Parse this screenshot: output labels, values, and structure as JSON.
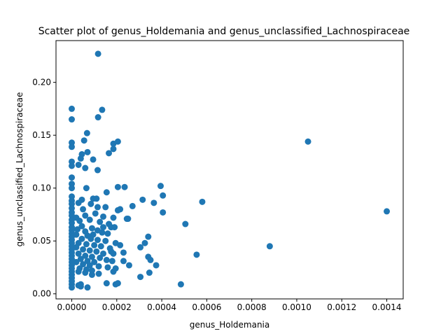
{
  "chart_data": {
    "type": "scatter",
    "title": "Scatter plot of genus_Holdemania and genus_unclassified_Lachnospiraceae",
    "xlabel": "genus_Holdemania",
    "ylabel": "genus_unclassified_Lachnospiraceae",
    "xlim": [
      -7e-05,
      0.001473
    ],
    "ylim": [
      -0.0048,
      0.2395
    ],
    "xticks": [
      0.0,
      0.0002,
      0.0004,
      0.0006,
      0.0008,
      0.001,
      0.0012,
      0.0014
    ],
    "xtick_labels": [
      "0.0000",
      "0.0002",
      "0.0004",
      "0.0006",
      "0.0008",
      "0.0010",
      "0.0012",
      "0.0014"
    ],
    "yticks": [
      0.0,
      0.05,
      0.1,
      0.15,
      0.2
    ],
    "ytick_labels": [
      "0.00",
      "0.05",
      "0.10",
      "0.15",
      "0.20"
    ],
    "marker_color": "#1f77b4",
    "series": [
      {
        "name": "genus_Holdemania vs genus_unclassified_Lachnospiraceae",
        "points": [
          [
            0.0,
            0.175
          ],
          [
            0.0,
            0.165
          ],
          [
            0.0,
            0.143
          ],
          [
            0.0,
            0.139
          ],
          [
            0.0,
            0.125
          ],
          [
            0.0,
            0.121
          ],
          [
            0.0,
            0.11
          ],
          [
            0.0,
            0.104
          ],
          [
            0.0,
            0.1
          ],
          [
            0.0,
            0.092
          ],
          [
            0.0,
            0.088
          ],
          [
            0.0,
            0.085
          ],
          [
            0.0,
            0.081
          ],
          [
            0.0,
            0.077
          ],
          [
            0.0,
            0.074
          ],
          [
            0.0,
            0.07
          ],
          [
            0.0,
            0.067
          ],
          [
            0.0,
            0.063
          ],
          [
            0.0,
            0.06
          ],
          [
            0.0,
            0.057
          ],
          [
            0.0,
            0.054
          ],
          [
            0.0,
            0.051
          ],
          [
            0.0,
            0.048
          ],
          [
            0.0,
            0.045
          ],
          [
            0.0,
            0.042
          ],
          [
            0.0,
            0.039
          ],
          [
            0.0,
            0.036
          ],
          [
            0.0,
            0.033
          ],
          [
            0.0,
            0.03
          ],
          [
            0.0,
            0.027
          ],
          [
            0.0,
            0.024
          ],
          [
            0.0,
            0.021
          ],
          [
            0.0,
            0.018
          ],
          [
            0.0,
            0.015
          ],
          [
            0.0,
            0.012
          ],
          [
            0.0,
            0.009
          ],
          [
            0.0,
            0.006
          ],
          [
            0.000117,
            0.227
          ],
          [
            0.000135,
            0.174
          ],
          [
            0.000117,
            0.167
          ],
          [
            6.8e-05,
            0.152
          ],
          [
            5.5e-05,
            0.145
          ],
          [
            0.000205,
            0.144
          ],
          [
            0.000185,
            0.142
          ],
          [
            0.000185,
            0.137
          ],
          [
            7e-05,
            0.134
          ],
          [
            4.5e-05,
            0.132
          ],
          [
            0.000165,
            0.133
          ],
          [
            9.5e-05,
            0.127
          ],
          [
            4e-05,
            0.128
          ],
          [
            3e-05,
            0.122
          ],
          [
            6e-05,
            0.119
          ],
          [
            0.000115,
            0.117
          ],
          [
            6.5e-05,
            0.1
          ],
          [
            0.000155,
            0.096
          ],
          [
            0.000205,
            0.101
          ],
          [
            0.000235,
            0.101
          ],
          [
            0.000395,
            0.102
          ],
          [
            0.000405,
            0.093
          ],
          [
            9.5e-05,
            0.09
          ],
          [
            0.00011,
            0.09
          ],
          [
            4.5e-05,
            0.089
          ],
          [
            0.000315,
            0.089
          ],
          [
            0.000365,
            0.086
          ],
          [
            0.00058,
            0.087
          ],
          [
            0.00027,
            0.083
          ],
          [
            0.000215,
            0.08
          ],
          [
            0.000205,
            0.079
          ],
          [
            0.00015,
            0.082
          ],
          [
            8.5e-05,
            0.085
          ],
          [
            3e-05,
            0.086
          ],
          [
            5e-05,
            0.08
          ],
          [
            0.000115,
            0.082
          ],
          [
            0.000405,
            0.077
          ],
          [
            0.000105,
            0.076
          ],
          [
            0.00014,
            0.073
          ],
          [
            0.000185,
            0.072
          ],
          [
            0.000245,
            0.071
          ],
          [
            0.00025,
            0.071
          ],
          [
            6e-05,
            0.074
          ],
          [
            2e-05,
            0.072
          ],
          [
            3.5e-05,
            0.069
          ],
          [
            8e-05,
            0.07
          ],
          [
            0.000125,
            0.068
          ],
          [
            0.000165,
            0.066
          ],
          [
            0.000505,
            0.066
          ],
          [
            0.00014,
            0.063
          ],
          [
            0.000175,
            0.063
          ],
          [
            0.00019,
            0.063
          ],
          [
            4.5e-05,
            0.064
          ],
          [
            9e-05,
            0.062
          ],
          [
            0.000115,
            0.06
          ],
          [
            2.5e-05,
            0.061
          ],
          [
            6e-05,
            0.059
          ],
          [
            0.000135,
            0.058
          ],
          [
            0.00016,
            0.057
          ],
          [
            9.5e-05,
            0.056
          ],
          [
            7e-05,
            0.055
          ],
          [
            2e-05,
            0.056
          ],
          [
            0.00034,
            0.054
          ],
          [
            4.5e-05,
            0.052
          ],
          [
            8.5e-05,
            0.052
          ],
          [
            0.000115,
            0.051
          ],
          [
            0.00015,
            0.05
          ],
          [
            0.000195,
            0.048
          ],
          [
            0.000215,
            0.046
          ],
          [
            0.000325,
            0.048
          ],
          [
            0.000305,
            0.044
          ],
          [
            3e-05,
            0.048
          ],
          [
            6.5e-05,
            0.047
          ],
          [
            0.0001,
            0.046
          ],
          [
            0.00013,
            0.045
          ],
          [
            0.00017,
            0.043
          ],
          [
            0.00023,
            0.039
          ],
          [
            0.000175,
            0.04
          ],
          [
            2e-05,
            0.044
          ],
          [
            5e-05,
            0.042
          ],
          [
            8e-05,
            0.041
          ],
          [
            0.00011,
            0.04
          ],
          [
            0.00014,
            0.038
          ],
          [
            0.000185,
            0.038
          ],
          [
            0.00034,
            0.035
          ],
          [
            0.00035,
            0.032
          ],
          [
            0.000555,
            0.037
          ],
          [
            0.00088,
            0.045
          ],
          [
            3e-05,
            0.038
          ],
          [
            6e-05,
            0.036
          ],
          [
            9e-05,
            0.035
          ],
          [
            0.000125,
            0.034
          ],
          [
            0.000155,
            0.032
          ],
          [
            0.00018,
            0.031
          ],
          [
            0.00023,
            0.031
          ],
          [
            0.000255,
            0.027
          ],
          [
            0.000375,
            0.027
          ],
          [
            4e-05,
            0.033
          ],
          [
            7e-05,
            0.031
          ],
          [
            0.0001,
            0.03
          ],
          [
            2e-05,
            0.03
          ],
          [
            5e-05,
            0.028
          ],
          [
            8e-05,
            0.027
          ],
          [
            0.00012,
            0.026
          ],
          [
            0.00016,
            0.025
          ],
          [
            0.000195,
            0.024
          ],
          [
            0.000185,
            0.021
          ],
          [
            0.000345,
            0.02
          ],
          [
            3.5e-05,
            0.024
          ],
          [
            6.5e-05,
            0.023
          ],
          [
            9e-05,
            0.022
          ],
          [
            3e-05,
            0.021
          ],
          [
            6e-05,
            0.02
          ],
          [
            9e-05,
            0.018
          ],
          [
            0.00012,
            0.019
          ],
          [
            0.000305,
            0.016
          ],
          [
            0.000155,
            0.01
          ],
          [
            0.000195,
            0.009
          ],
          [
            0.000205,
            0.01
          ],
          [
            0.000485,
            0.009
          ],
          [
            4e-05,
            0.009
          ],
          [
            4e-05,
            0.007
          ],
          [
            7e-05,
            0.006
          ],
          [
            3e-05,
            0.008
          ],
          [
            0.00105,
            0.144
          ],
          [
            0.0014,
            0.078
          ]
        ]
      }
    ]
  }
}
